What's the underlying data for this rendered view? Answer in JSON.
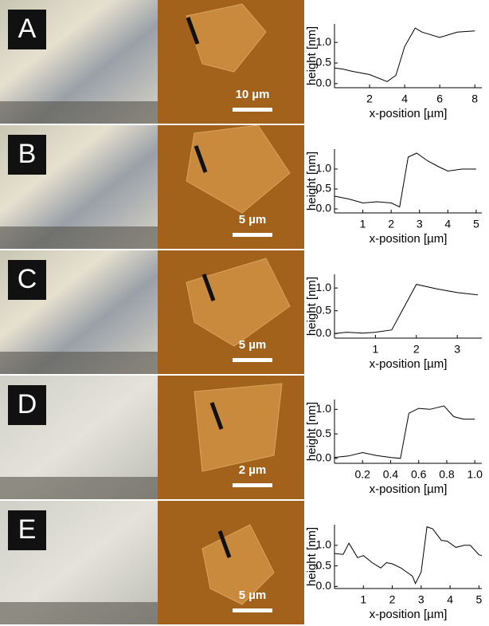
{
  "panels": [
    {
      "label": "A",
      "scale_bar": "10 µm"
    },
    {
      "label": "B",
      "scale_bar": "5 µm"
    },
    {
      "label": "C",
      "scale_bar": "5 µm"
    },
    {
      "label": "D",
      "scale_bar": "2 µm"
    },
    {
      "label": "E",
      "scale_bar": "5 µm"
    }
  ],
  "chart_data": [
    {
      "type": "line",
      "xlabel": "x-position [µm]",
      "ylabel": "height [nm]",
      "color": "#000",
      "xlim": [
        0,
        8.4
      ],
      "ylim": [
        -0.1,
        1.45
      ],
      "xticks": [
        2,
        4,
        6,
        8
      ],
      "yticks": [
        {
          "value": 0,
          "label": "0.0"
        },
        0.5,
        {
          "value": 1,
          "label": "1.0"
        }
      ],
      "x": [
        0,
        0.5,
        1,
        2,
        3,
        3.5,
        4,
        4.6,
        5,
        6,
        7,
        8
      ],
      "values": [
        0.38,
        0.35,
        0.3,
        0.22,
        0.05,
        0.2,
        0.9,
        1.35,
        1.25,
        1.12,
        1.25,
        1.28
      ]
    },
    {
      "type": "line",
      "xlabel": "x-position [µm]",
      "ylabel": "height [nm]",
      "color": "#000",
      "xlim": [
        0,
        5.2
      ],
      "ylim": [
        -0.1,
        1.5
      ],
      "xticks": [
        1,
        2,
        3,
        4,
        5
      ],
      "yticks": [
        {
          "value": 0,
          "label": "0.0"
        },
        0.5,
        {
          "value": 1,
          "label": "1.0"
        }
      ],
      "x": [
        0,
        0.5,
        1,
        1.5,
        2,
        2.3,
        2.6,
        2.9,
        3.3,
        3.7,
        4,
        4.5,
        5
      ],
      "values": [
        0.32,
        0.25,
        0.15,
        0.18,
        0.15,
        0.05,
        1.3,
        1.4,
        1.2,
        1.05,
        0.95,
        1.0,
        1.0
      ]
    },
    {
      "type": "line",
      "xlabel": "x-position [µm]",
      "ylabel": "height [nm]",
      "color": "#000",
      "xlim": [
        0,
        3.6
      ],
      "ylim": [
        -0.1,
        1.3
      ],
      "xticks": [
        1,
        2,
        3
      ],
      "yticks": [
        {
          "value": 0,
          "label": "0.0"
        },
        0.5,
        {
          "value": 1,
          "label": "1.0"
        }
      ],
      "x": [
        0,
        0.3,
        0.7,
        1,
        1.4,
        2,
        2.5,
        3,
        3.5
      ],
      "values": [
        0.0,
        0.03,
        0.01,
        0.03,
        0.08,
        1.08,
        0.98,
        0.9,
        0.85
      ]
    },
    {
      "type": "line",
      "xlabel": "x-position [µm]",
      "ylabel": "height [nm]",
      "color": "#000",
      "xlim": [
        0,
        1.05
      ],
      "ylim": [
        -0.1,
        1.2
      ],
      "xticks": [
        0.2,
        0.4,
        0.6,
        0.8,
        {
          "value": 1,
          "label": "1.0"
        }
      ],
      "yticks": [
        {
          "value": 0,
          "label": "0.0"
        },
        0.5,
        {
          "value": 1,
          "label": "1.0"
        }
      ],
      "x": [
        0,
        0.1,
        0.2,
        0.3,
        0.4,
        0.47,
        0.53,
        0.6,
        0.68,
        0.78,
        0.85,
        0.92,
        1.0
      ],
      "values": [
        0.02,
        0.05,
        0.12,
        0.06,
        0.02,
        0.0,
        0.92,
        1.02,
        1.0,
        1.07,
        0.85,
        0.8,
        0.8
      ]
    },
    {
      "type": "line",
      "xlabel": "x-position [µm]",
      "ylabel": "height [nm]",
      "color": "#000",
      "xlim": [
        0,
        5.1
      ],
      "ylim": [
        -0.05,
        1.5
      ],
      "xticks": [
        1,
        2,
        3,
        4,
        5
      ],
      "yticks": [
        {
          "value": 0,
          "label": "0.0"
        },
        0.5,
        {
          "value": 1,
          "label": "1.0"
        }
      ],
      "x": [
        0,
        0.3,
        0.5,
        0.8,
        1,
        1.3,
        1.6,
        1.8,
        2,
        2.3,
        2.5,
        2.7,
        2.8,
        3,
        3.2,
        3.4,
        3.7,
        3.9,
        4.2,
        4.5,
        4.7,
        5,
        5.1
      ],
      "values": [
        0.8,
        0.78,
        1.05,
        0.7,
        0.75,
        0.58,
        0.45,
        0.58,
        0.55,
        0.45,
        0.35,
        0.25,
        0.07,
        0.35,
        1.45,
        1.4,
        1.12,
        1.1,
        0.95,
        1.0,
        1.0,
        0.77,
        0.75
      ]
    }
  ]
}
